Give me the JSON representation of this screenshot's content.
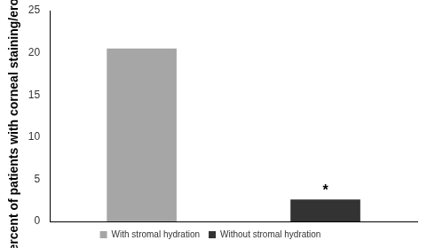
{
  "chart_data": {
    "type": "bar",
    "y_label": "Percent of patients with corneal staining/erosion",
    "categories": [
      null
    ],
    "series": [
      {
        "name": "With stromal hydration",
        "color": "#a6a6a6",
        "values": [
          20.5
        ]
      },
      {
        "name": "Without stromal hydration",
        "color": "#333333",
        "values": [
          2.6
        ]
      }
    ],
    "ylim": [
      0,
      25
    ],
    "yticks": [
      0,
      5,
      10,
      15,
      20,
      25
    ],
    "grid": false,
    "legend": "bottom",
    "tick_labels": "y",
    "annotations": [
      {
        "text": "*",
        "series": 1,
        "category": 0
      }
    ]
  }
}
